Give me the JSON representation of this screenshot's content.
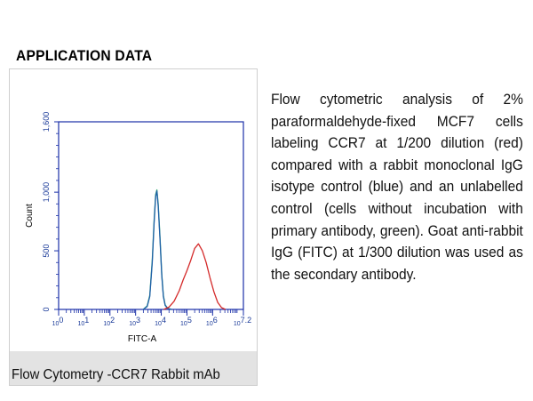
{
  "section_heading": "APPLICATION DATA",
  "description": "Flow cytometric analysis of 2% paraformaldehyde-fixed MCF7 cells labeling CCR7 at 1/200 dilution (red) compared with a rabbit monoclonal IgG isotype control (blue) and an unlabelled control (cells without incubation with primary antibody, green). Goat anti-rabbit IgG (FITC) at 1/300 dilution was used as the secondary antibody.",
  "figure_caption": "Flow Cytometry -CCR7 Rabbit mAb",
  "colors": {
    "axis": "#1a2fa8",
    "red_series": "#d42a2a",
    "blue_series": "#1f5fa8",
    "green_series": "#2aa86a",
    "caption_bg": "#e3e3e3"
  },
  "chart_data": {
    "type": "line",
    "title": "",
    "xlabel": "FITC-A",
    "ylabel": "Count",
    "x_scale": "log",
    "xlim": [
      1,
      15848931
    ],
    "ylim": [
      0,
      1600
    ],
    "y_ticks": [
      {
        "value": 0,
        "label": "0"
      },
      {
        "value": 500,
        "label": "500"
      },
      {
        "value": 1000,
        "label": "1,000"
      },
      {
        "value": 1600,
        "label": "1,600"
      }
    ],
    "x_ticks": [
      {
        "exp": 0,
        "base": "10",
        "sup": "0"
      },
      {
        "exp": 1,
        "base": "10",
        "sup": "1"
      },
      {
        "exp": 2,
        "base": "10",
        "sup": "2"
      },
      {
        "exp": 3,
        "base": "10",
        "sup": "3"
      },
      {
        "exp": 4,
        "base": "10",
        "sup": "4"
      },
      {
        "exp": 5,
        "base": "10",
        "sup": "5"
      },
      {
        "exp": 6,
        "base": "10",
        "sup": "6"
      },
      {
        "exp": 7.2,
        "base": "10",
        "sup": "7.2"
      }
    ],
    "series": [
      {
        "name": "Unlabelled control",
        "color": "green",
        "x_log10": [
          3.3,
          3.45,
          3.55,
          3.65,
          3.72,
          3.78,
          3.83,
          3.88,
          3.95,
          4.02,
          4.08,
          4.15,
          4.25,
          4.4
        ],
        "y": [
          0,
          30,
          120,
          420,
          760,
          980,
          1020,
          900,
          620,
          300,
          120,
          40,
          10,
          0
        ]
      },
      {
        "name": "Isotype control IgG",
        "color": "blue",
        "x_log10": [
          3.3,
          3.45,
          3.55,
          3.65,
          3.72,
          3.78,
          3.83,
          3.88,
          3.95,
          4.02,
          4.08,
          4.15,
          4.25,
          4.4
        ],
        "y": [
          0,
          25,
          110,
          400,
          740,
          960,
          1010,
          880,
          600,
          290,
          110,
          35,
          8,
          0
        ]
      },
      {
        "name": "CCR7",
        "color": "red",
        "x_log10": [
          4.1,
          4.3,
          4.5,
          4.7,
          4.85,
          5.0,
          5.15,
          5.3,
          5.45,
          5.6,
          5.75,
          5.9,
          6.05,
          6.2,
          6.35,
          6.5
        ],
        "y": [
          0,
          20,
          70,
          160,
          250,
          330,
          420,
          520,
          560,
          500,
          400,
          270,
          150,
          60,
          15,
          0
        ]
      }
    ]
  }
}
